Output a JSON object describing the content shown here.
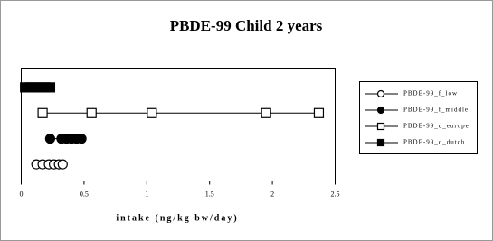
{
  "chart_data": {
    "type": "line",
    "title": "PBDE-99 Child 2 years",
    "x_label": "intake (ng/kg bw/day)",
    "xlim": [
      0,
      2.5
    ],
    "xticks": [
      0,
      0.5,
      1,
      1.5,
      2,
      2.5
    ],
    "legend": "right",
    "series": [
      {
        "name": "PBDE-99_f_low",
        "color": "#000000",
        "marker": "open-circle",
        "x": [
          0.12,
          0.17,
          0.22,
          0.26,
          0.3,
          0.33
        ]
      },
      {
        "name": "PBDE-99_f_middle",
        "color": "#000000",
        "marker": "filled-circle",
        "x": [
          0.23,
          0.32,
          0.36,
          0.4,
          0.44,
          0.48
        ]
      },
      {
        "name": "PBDE-99_d_europe",
        "color": "#000000",
        "marker": "open-square",
        "x": [
          0.17,
          0.56,
          1.04,
          1.95,
          2.37
        ]
      },
      {
        "name": "PBDE-99_d_dutch",
        "color": "#000000",
        "marker": "filled-square",
        "x": [
          0.03,
          0.07,
          0.11,
          0.15,
          0.19,
          0.23
        ]
      }
    ]
  }
}
